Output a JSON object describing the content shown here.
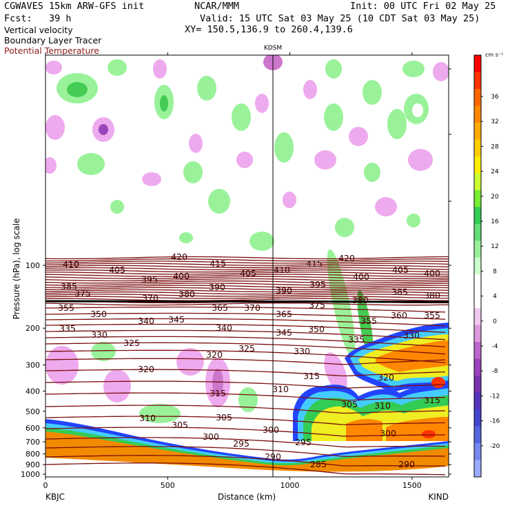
{
  "header": {
    "model": "CGWAVES 15km ARW-GFS init",
    "org": "NCAR/MMM",
    "init": "Init: 00 UTC Fri 02 May 25",
    "fcst": "Fcst:   39 h",
    "valid": "Valid: 15 UTC Sat 03 May 25 (10 CDT Sat 03 May 25)",
    "xy": "XY= 150.5,136.9 to 260.4,139.6",
    "fields": [
      "Vertical velocity",
      "Boundary Layer Tracer",
      "Potential Temperature"
    ]
  },
  "station_marker": "KDSM",
  "colors": {
    "theta": "#7a0d0d",
    "up_light": "#99f299",
    "up_mid": "#44cc55",
    "down_light": "#eeaaee",
    "down_mid": "#cc77cc",
    "down_dark": "#8844aa",
    "terrain": "#f28a00"
  },
  "chart_data": {
    "type": "cross-section",
    "xlabel": "Distance (km)",
    "ylabel": "Pressure (hPa), log scale",
    "x_ticks": [
      0,
      500,
      1000,
      1500
    ],
    "x_range": [
      0,
      1650
    ],
    "y_ticks": [
      100,
      200,
      300,
      400,
      500,
      600,
      700,
      800,
      900,
      1000
    ],
    "y_scale": "log",
    "endpoints": {
      "left": "KBJC",
      "right": "KIND"
    },
    "station_x_km": 940,
    "colorbar": {
      "units": "cm s⁻¹",
      "tick_labels": [
        "36",
        "32",
        "28",
        "24",
        "20",
        "16",
        "12",
        "8",
        "4",
        "0",
        "-4",
        "-8",
        "-12",
        "-16",
        "-20"
      ],
      "colors": [
        "#ff0000",
        "#ff3300",
        "#ff6600",
        "#ff8800",
        "#ffaa00",
        "#ffcc00",
        "#ffee00",
        "#ccff33",
        "#77ee33",
        "#33cc55",
        "#66dd77",
        "#99f099",
        "#ccffcc",
        "#ffffff",
        "#ffffff",
        "#f0c8f0",
        "#dd99dd",
        "#bb66cc",
        "#9944bb",
        "#7733aa",
        "#5533bb",
        "#4444cc",
        "#5566dd",
        "#7788ee",
        "#99aaff"
      ]
    },
    "theta_labels": [
      {
        "v": "420",
        "x": 260,
        "y": 377
      },
      {
        "v": "415",
        "x": 316,
        "y": 387
      },
      {
        "v": "410",
        "x": 103,
        "y": 388
      },
      {
        "v": "405",
        "x": 170,
        "y": 396
      },
      {
        "v": "400",
        "x": 263,
        "y": 405
      },
      {
        "v": "395",
        "x": 217,
        "y": 410
      },
      {
        "v": "405",
        "x": 360,
        "y": 401
      },
      {
        "v": "410",
        "x": 409,
        "y": 396
      },
      {
        "v": "415",
        "x": 456,
        "y": 387
      },
      {
        "v": "420",
        "x": 503,
        "y": 379
      },
      {
        "v": "400",
        "x": 524,
        "y": 406
      },
      {
        "v": "405",
        "x": 581,
        "y": 396
      },
      {
        "v": "400",
        "x": 627,
        "y": 401
      },
      {
        "v": "395",
        "x": 461,
        "y": 417
      },
      {
        "v": "390",
        "x": 315,
        "y": 421
      },
      {
        "v": "385",
        "x": 100,
        "y": 420
      },
      {
        "v": "375",
        "x": 120,
        "y": 430
      },
      {
        "v": "380",
        "x": 271,
        "y": 431
      },
      {
        "v": "390",
        "x": 412,
        "y": 426
      },
      {
        "v": "385",
        "x": 580,
        "y": 428
      },
      {
        "v": "380",
        "x": 627,
        "y": 433
      },
      {
        "v": "370",
        "x": 218,
        "y": 437
      },
      {
        "v": "365",
        "x": 319,
        "y": 451
      },
      {
        "v": "370",
        "x": 366,
        "y": 451
      },
      {
        "v": "375",
        "x": 460,
        "y": 447
      },
      {
        "v": "380",
        "x": 523,
        "y": 440
      },
      {
        "v": "355",
        "x": 96,
        "y": 451
      },
      {
        "v": "350",
        "x": 143,
        "y": 460
      },
      {
        "v": "345",
        "x": 256,
        "y": 468
      },
      {
        "v": "340",
        "x": 212,
        "y": 470
      },
      {
        "v": "365",
        "x": 412,
        "y": 460
      },
      {
        "v": "360",
        "x": 579,
        "y": 462
      },
      {
        "v": "355",
        "x": 627,
        "y": 462
      },
      {
        "v": "355",
        "x": 535,
        "y": 470
      },
      {
        "v": "340",
        "x": 325,
        "y": 480
      },
      {
        "v": "335",
        "x": 98,
        "y": 481
      },
      {
        "v": "330",
        "x": 144,
        "y": 490
      },
      {
        "v": "345",
        "x": 412,
        "y": 487
      },
      {
        "v": "350",
        "x": 459,
        "y": 482
      },
      {
        "v": "335",
        "x": 517,
        "y": 497
      },
      {
        "v": "330",
        "x": 597,
        "y": 491
      },
      {
        "v": "325",
        "x": 191,
        "y": 502
      },
      {
        "v": "325",
        "x": 358,
        "y": 510
      },
      {
        "v": "330",
        "x": 438,
        "y": 514
      },
      {
        "v": "320",
        "x": 311,
        "y": 519
      },
      {
        "v": "320",
        "x": 212,
        "y": 540
      },
      {
        "v": "315",
        "x": 452,
        "y": 550
      },
      {
        "v": "320",
        "x": 560,
        "y": 552
      },
      {
        "v": "310",
        "x": 407,
        "y": 569
      },
      {
        "v": "315",
        "x": 316,
        "y": 575
      },
      {
        "v": "315",
        "x": 627,
        "y": 585
      },
      {
        "v": "305",
        "x": 507,
        "y": 591
      },
      {
        "v": "310",
        "x": 555,
        "y": 593
      },
      {
        "v": "310",
        "x": 214,
        "y": 611
      },
      {
        "v": "305",
        "x": 325,
        "y": 610
      },
      {
        "v": "305",
        "x": 261,
        "y": 621
      },
      {
        "v": "300",
        "x": 393,
        "y": 628
      },
      {
        "v": "300",
        "x": 563,
        "y": 633
      },
      {
        "v": "300",
        "x": 306,
        "y": 638
      },
      {
        "v": "295",
        "x": 350,
        "y": 648
      },
      {
        "v": "295",
        "x": 440,
        "y": 646
      },
      {
        "v": "290",
        "x": 396,
        "y": 667
      },
      {
        "v": "285",
        "x": 462,
        "y": 678
      },
      {
        "v": "290",
        "x": 590,
        "y": 678
      }
    ]
  }
}
